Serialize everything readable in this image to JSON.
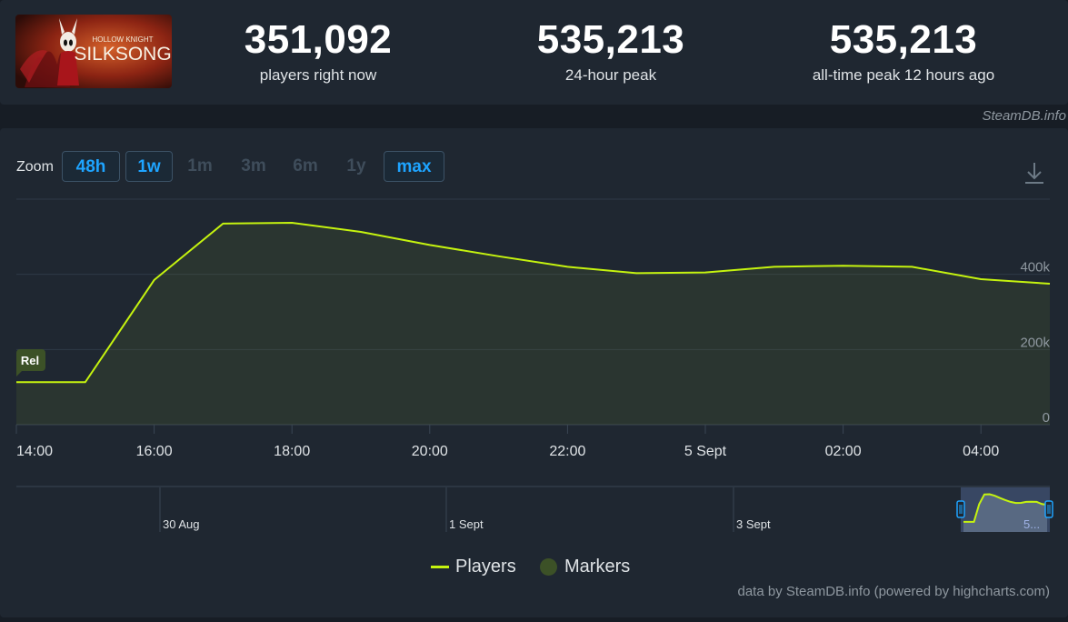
{
  "header": {
    "game_logo_text": {
      "line1": "HOLLOW KNIGHT",
      "line2": "SILKSONG"
    },
    "stats": [
      {
        "value": "351,092",
        "label": "players right now"
      },
      {
        "value": "535,213",
        "label": "24-hour peak"
      },
      {
        "value": "535,213",
        "label": "all-time peak 12 hours ago"
      }
    ],
    "credit": "SteamDB.info"
  },
  "zoom": {
    "label": "Zoom",
    "buttons": [
      {
        "label": "48h",
        "active": true
      },
      {
        "label": "1w",
        "active": true
      },
      {
        "label": "1m",
        "active": false
      },
      {
        "label": "3m",
        "active": false
      },
      {
        "label": "6m",
        "active": false
      },
      {
        "label": "1y",
        "active": false
      },
      {
        "label": "max",
        "active": true
      }
    ]
  },
  "icons": {
    "download": "download-icon",
    "release_marker": "flag-icon",
    "navigator_handle": "drag-handle-icon"
  },
  "colors": {
    "line": "#c5f30f",
    "marker": "#3c5127",
    "accent": "#1ea4ff"
  },
  "chart_data": {
    "type": "line",
    "series": [
      {
        "name": "Players",
        "x": [
          "13:00",
          "14:00",
          "15:00",
          "16:00",
          "17:00",
          "18:00",
          "19:00",
          "20:00",
          "21:00",
          "22:00",
          "23:00",
          "00:00",
          "01:00",
          "02:00",
          "03:00",
          "04:00",
          "05:00"
        ],
        "values": [
          113000,
          113000,
          113000,
          385000,
          535000,
          537000,
          513000,
          478000,
          448000,
          420000,
          403000,
          405000,
          420000,
          423000,
          420000,
          387000,
          375000
        ]
      }
    ],
    "x_tick_labels": [
      "14:00",
      "16:00",
      "18:00",
      "20:00",
      "22:00",
      "5 Sept",
      "02:00",
      "04:00"
    ],
    "y_tick_labels": [
      "0",
      "200k",
      "400k"
    ],
    "ylim": [
      0,
      600000
    ],
    "markers": [
      {
        "label": "Rel",
        "x": "13:00"
      }
    ],
    "grid": true,
    "legend": {
      "position": "bottom",
      "items": [
        "Players",
        "Markers"
      ]
    },
    "navigator": {
      "labels": [
        "30 Aug",
        "1 Sept",
        "3 Sept",
        "5..."
      ]
    }
  },
  "footer": {
    "credit": "data by SteamDB.info (powered by highcharts.com)"
  }
}
